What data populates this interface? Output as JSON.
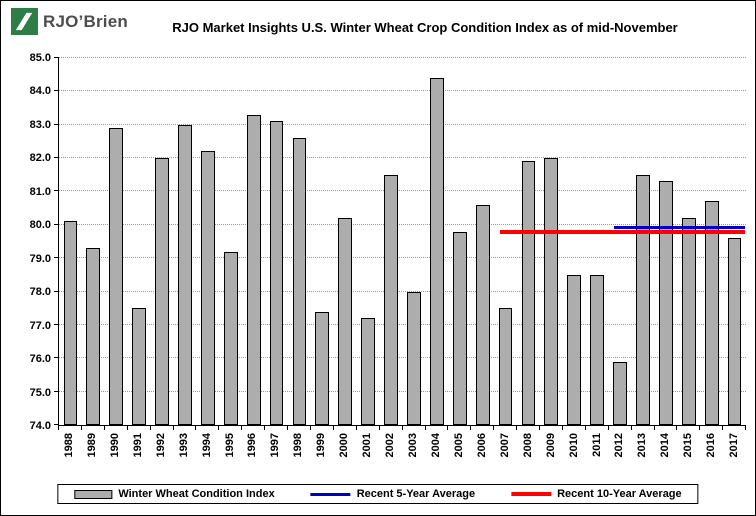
{
  "header": {
    "logo_text": "RJO’Brien",
    "logo_color": "#2e7d46"
  },
  "chart_data": {
    "type": "bar",
    "title": "RJO Market Insights U.S. Winter Wheat Crop Condition Index as of mid-November",
    "series_name": "Winter Wheat Condition Index",
    "categories": [
      "1988",
      "1989",
      "1990",
      "1991",
      "1992",
      "1993",
      "1994",
      "1995",
      "1996",
      "1997",
      "1998",
      "1999",
      "2000",
      "2001",
      "2002",
      "2003",
      "2004",
      "2005",
      "2006",
      "2007",
      "2008",
      "2009",
      "2010",
      "2011",
      "2012",
      "2013",
      "2014",
      "2015",
      "2016",
      "2017"
    ],
    "values": [
      80.1,
      79.3,
      82.9,
      77.5,
      82.0,
      83.0,
      82.2,
      79.2,
      83.3,
      83.1,
      82.6,
      77.4,
      80.2,
      77.2,
      81.5,
      78.0,
      84.4,
      79.8,
      80.6,
      77.5,
      81.9,
      82.0,
      78.5,
      78.5,
      75.9,
      81.5,
      81.3,
      80.2,
      80.7,
      79.6
    ],
    "ylim": [
      74.0,
      85.0
    ],
    "y_tick_step": 1.0,
    "grid": true,
    "bar_color": "#adadad",
    "legend_position": "bottom",
    "lines": [
      {
        "name": "Recent 5-Year Average",
        "color": "#0000cc",
        "value": 79.95,
        "x_start": "2012",
        "x_end": "2017"
      },
      {
        "name": "Recent 10-Year Average",
        "color": "#ff0000",
        "value": 79.8,
        "x_start": "2007",
        "x_end": "2017"
      }
    ]
  },
  "legend": {
    "items": [
      {
        "label": "Winter Wheat Condition Index",
        "swatch": "bar",
        "color": "#adadad"
      },
      {
        "label": "Recent 5-Year Average",
        "swatch": "line",
        "color": "#0000cc"
      },
      {
        "label": "Recent 10-Year Average",
        "swatch": "line-thick",
        "color": "#ff0000"
      }
    ]
  }
}
